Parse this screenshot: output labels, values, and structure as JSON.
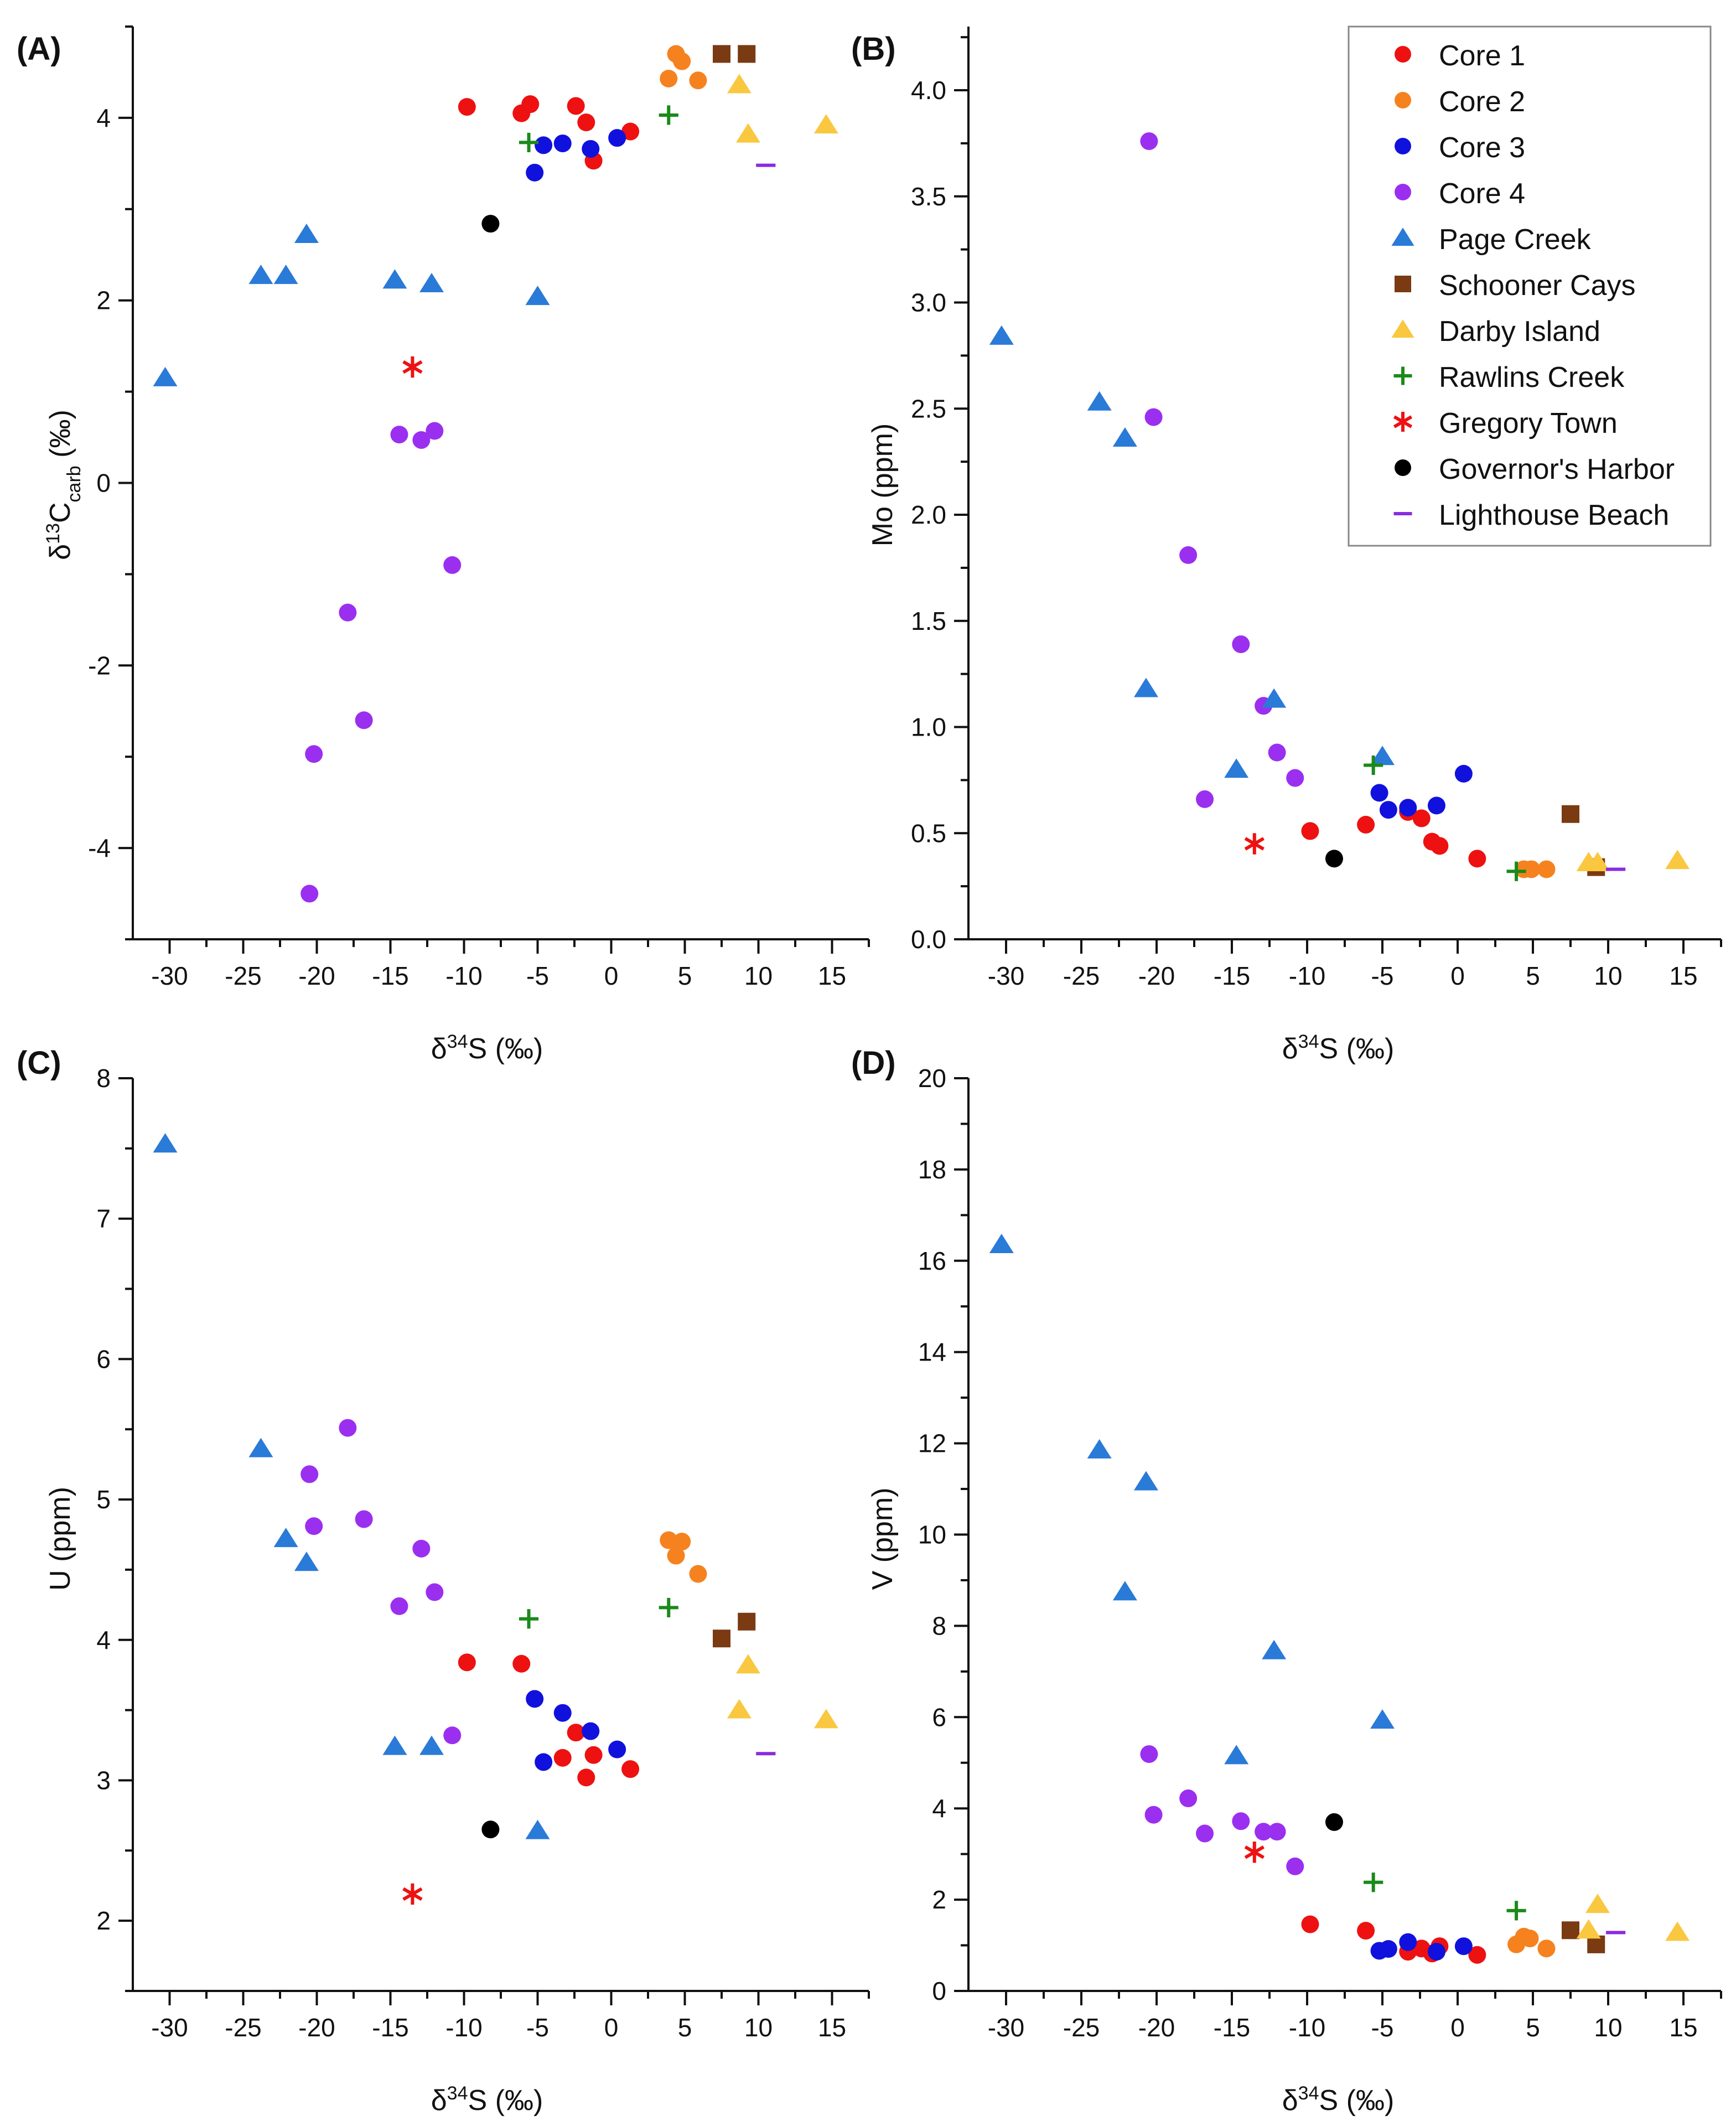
{
  "figure": {
    "legend": [
      {
        "name": "Core 1",
        "marker": "circle",
        "color": "#ee1111"
      },
      {
        "name": "Core 2",
        "marker": "circle",
        "color": "#f5821f"
      },
      {
        "name": "Core 3",
        "marker": "circle",
        "color": "#1111dd"
      },
      {
        "name": "Core 4",
        "marker": "circle",
        "color": "#9b2ff0"
      },
      {
        "name": "Page Creek",
        "marker": "triangle",
        "color": "#2a7ad8"
      },
      {
        "name": "Schooner Cays",
        "marker": "square",
        "color": "#7a3a12"
      },
      {
        "name": "Darby Island",
        "marker": "triangle",
        "color": "#f9c840"
      },
      {
        "name": "Rawlins Creek",
        "marker": "plus",
        "color": "#1a8a1a"
      },
      {
        "name": "Gregory Town",
        "marker": "asterisk",
        "color": "#ee1111"
      },
      {
        "name": "Governor's Harbor",
        "marker": "circle",
        "color": "#000000"
      },
      {
        "name": "Lighthouse Beach",
        "marker": "dash",
        "color": "#8a2be2"
      }
    ]
  },
  "chart_data": [
    {
      "type": "scatter",
      "panel": "(A)",
      "xlabel_main": "δ",
      "xlabel_sup": "34",
      "xlabel_rest": "S (‰)",
      "ylabel_main": "δ",
      "ylabel_sup": "13",
      "ylabel_mid": "C",
      "ylabel_sub": "carb",
      "ylabel_rest": " (‰)",
      "xlim": [
        -32.5,
        17.5
      ],
      "ylim": [
        -5,
        5
      ],
      "xticks": [
        -30,
        -25,
        -20,
        -15,
        -10,
        -5,
        0,
        5,
        10,
        15
      ],
      "yticks": [
        -4,
        -2,
        0,
        2,
        4
      ],
      "ytick_labels": [
        "-4",
        "-2",
        "0",
        "2",
        "4"
      ],
      "series": [
        {
          "name": "Core 1",
          "points": [
            [
              -9.8,
              4.12
            ],
            [
              -6.1,
              4.05
            ],
            [
              -5.5,
              4.15
            ],
            [
              -2.4,
              4.13
            ],
            [
              -1.7,
              3.95
            ],
            [
              -1.2,
              3.53
            ],
            [
              1.3,
              3.85
            ]
          ]
        },
        {
          "name": "Core 2",
          "points": [
            [
              3.9,
              4.43
            ],
            [
              4.4,
              4.7
            ],
            [
              4.8,
              4.62
            ],
            [
              5.9,
              4.41
            ]
          ]
        },
        {
          "name": "Core 3",
          "points": [
            [
              -5.2,
              3.4
            ],
            [
              -4.6,
              3.7
            ],
            [
              -3.3,
              3.72
            ],
            [
              -1.4,
              3.66
            ],
            [
              0.4,
              3.78
            ]
          ]
        },
        {
          "name": "Core 4",
          "points": [
            [
              -20.5,
              -4.5
            ],
            [
              -20.2,
              -2.97
            ],
            [
              -17.9,
              -1.42
            ],
            [
              -16.8,
              -2.6
            ],
            [
              -14.4,
              0.53
            ],
            [
              -12.9,
              0.47
            ],
            [
              -12.0,
              0.57
            ],
            [
              -10.8,
              -0.9
            ]
          ]
        },
        {
          "name": "Page Creek",
          "points": [
            [
              -30.3,
              1.15
            ],
            [
              -23.8,
              2.27
            ],
            [
              -22.1,
              2.27
            ],
            [
              -20.7,
              2.72
            ],
            [
              -14.7,
              2.22
            ],
            [
              -12.2,
              2.18
            ],
            [
              -5.0,
              2.04
            ]
          ]
        },
        {
          "name": "Schooner Cays",
          "points": [
            [
              7.5,
              4.7
            ],
            [
              9.2,
              4.7
            ]
          ]
        },
        {
          "name": "Darby Island",
          "points": [
            [
              8.7,
              4.36
            ],
            [
              9.3,
              3.82
            ],
            [
              14.6,
              3.92
            ]
          ]
        },
        {
          "name": "Rawlins Creek",
          "points": [
            [
              -5.6,
              3.73
            ],
            [
              3.9,
              4.03
            ]
          ]
        },
        {
          "name": "Gregory Town",
          "points": [
            [
              -13.5,
              1.27
            ]
          ]
        },
        {
          "name": "Governor's Harbor",
          "points": [
            [
              -8.2,
              2.84
            ]
          ]
        },
        {
          "name": "Lighthouse Beach",
          "points": [
            [
              10.5,
              3.48
            ]
          ]
        }
      ]
    },
    {
      "type": "scatter",
      "panel": "(B)",
      "xlabel_main": "δ",
      "xlabel_sup": "34",
      "xlabel_rest": "S (‰)",
      "ylabel_text": "Mo (ppm)",
      "xlim": [
        -32.5,
        17.5
      ],
      "ylim": [
        0,
        4.3
      ],
      "xticks": [
        -30,
        -25,
        -20,
        -15,
        -10,
        -5,
        0,
        5,
        10,
        15
      ],
      "yticks": [
        0,
        0.5,
        1,
        1.5,
        2,
        2.5,
        3,
        3.5,
        4
      ],
      "ytick_labels": [
        "0.0",
        "0.5",
        "1.0",
        "1.5",
        "2.0",
        "2.5",
        "3.0",
        "3.5",
        "4.0"
      ],
      "series": [
        {
          "name": "Core 1",
          "points": [
            [
              -9.8,
              0.51
            ],
            [
              -6.1,
              0.54
            ],
            [
              -3.3,
              0.6
            ],
            [
              -2.4,
              0.57
            ],
            [
              -1.7,
              0.46
            ],
            [
              -1.2,
              0.44
            ],
            [
              1.3,
              0.38
            ]
          ]
        },
        {
          "name": "Core 2",
          "points": [
            [
              4.4,
              0.33
            ],
            [
              4.9,
              0.33
            ],
            [
              5.9,
              0.33
            ]
          ]
        },
        {
          "name": "Core 3",
          "points": [
            [
              -5.2,
              0.69
            ],
            [
              -4.6,
              0.61
            ],
            [
              -3.3,
              0.62
            ],
            [
              -1.4,
              0.63
            ],
            [
              0.4,
              0.78
            ]
          ]
        },
        {
          "name": "Core 4",
          "points": [
            [
              -20.5,
              3.76
            ],
            [
              -20.2,
              2.46
            ],
            [
              -17.9,
              1.81
            ],
            [
              -16.8,
              0.66
            ],
            [
              -14.4,
              1.39
            ],
            [
              -12.9,
              1.1
            ],
            [
              -12.0,
              0.88
            ],
            [
              -10.8,
              0.76
            ]
          ]
        },
        {
          "name": "Page Creek",
          "points": [
            [
              -30.3,
              2.84
            ],
            [
              -23.8,
              2.53
            ],
            [
              -22.1,
              2.36
            ],
            [
              -20.7,
              1.18
            ],
            [
              -14.7,
              0.8
            ],
            [
              -12.2,
              1.13
            ],
            [
              -5.0,
              0.86
            ]
          ]
        },
        {
          "name": "Schooner Cays",
          "points": [
            [
              7.5,
              0.59
            ],
            [
              9.2,
              0.34
            ]
          ]
        },
        {
          "name": "Darby Island",
          "points": [
            [
              8.7,
              0.36
            ],
            [
              9.3,
              0.36
            ],
            [
              14.6,
              0.37
            ]
          ]
        },
        {
          "name": "Rawlins Creek",
          "points": [
            [
              -5.6,
              0.82
            ],
            [
              3.9,
              0.32
            ]
          ]
        },
        {
          "name": "Gregory Town",
          "points": [
            [
              -13.5,
              0.45
            ]
          ]
        },
        {
          "name": "Governor's Harbor",
          "points": [
            [
              -8.2,
              0.38
            ]
          ]
        },
        {
          "name": "Lighthouse Beach",
          "points": [
            [
              10.5,
              0.33
            ]
          ]
        }
      ]
    },
    {
      "type": "scatter",
      "panel": "(C)",
      "xlabel_main": "δ",
      "xlabel_sup": "34",
      "xlabel_rest": "S (‰)",
      "ylabel_text": "U (ppm)",
      "xlim": [
        -32.5,
        17.5
      ],
      "ylim": [
        1.5,
        8
      ],
      "xticks": [
        -30,
        -25,
        -20,
        -15,
        -10,
        -5,
        0,
        5,
        10,
        15
      ],
      "yticks": [
        2,
        3,
        4,
        5,
        6,
        7,
        8
      ],
      "ytick_labels": [
        "2",
        "3",
        "4",
        "5",
        "6",
        "7",
        "8"
      ],
      "series": [
        {
          "name": "Core 1",
          "points": [
            [
              -9.8,
              3.84
            ],
            [
              -6.1,
              3.83
            ],
            [
              -3.3,
              3.16
            ],
            [
              -2.4,
              3.34
            ],
            [
              -1.7,
              3.02
            ],
            [
              -1.2,
              3.18
            ],
            [
              1.3,
              3.08
            ]
          ]
        },
        {
          "name": "Core 2",
          "points": [
            [
              3.9,
              4.71
            ],
            [
              4.4,
              4.6
            ],
            [
              4.8,
              4.7
            ],
            [
              5.9,
              4.47
            ]
          ]
        },
        {
          "name": "Core 3",
          "points": [
            [
              -5.2,
              3.58
            ],
            [
              -4.6,
              3.13
            ],
            [
              -3.3,
              3.48
            ],
            [
              -1.4,
              3.35
            ],
            [
              0.4,
              3.22
            ]
          ]
        },
        {
          "name": "Core 4",
          "points": [
            [
              -20.5,
              5.18
            ],
            [
              -20.2,
              4.81
            ],
            [
              -17.9,
              5.51
            ],
            [
              -16.8,
              4.86
            ],
            [
              -14.4,
              4.24
            ],
            [
              -12.9,
              4.65
            ],
            [
              -12.0,
              4.34
            ],
            [
              -10.8,
              3.32
            ]
          ]
        },
        {
          "name": "Page Creek",
          "points": [
            [
              -30.3,
              7.53
            ],
            [
              -23.8,
              5.36
            ],
            [
              -22.1,
              4.72
            ],
            [
              -20.7,
              4.55
            ],
            [
              -14.7,
              3.24
            ],
            [
              -12.2,
              3.24
            ],
            [
              -5.0,
              2.64
            ]
          ]
        },
        {
          "name": "Schooner Cays",
          "points": [
            [
              7.5,
              4.01
            ],
            [
              9.2,
              4.13
            ]
          ]
        },
        {
          "name": "Darby Island",
          "points": [
            [
              8.7,
              3.5
            ],
            [
              9.3,
              3.82
            ],
            [
              14.6,
              3.43
            ]
          ]
        },
        {
          "name": "Rawlins Creek",
          "points": [
            [
              -5.6,
              4.15
            ],
            [
              3.9,
              4.23
            ]
          ]
        },
        {
          "name": "Gregory Town",
          "points": [
            [
              -13.5,
              2.19
            ]
          ]
        },
        {
          "name": "Governor's Harbor",
          "points": [
            [
              -8.2,
              2.65
            ]
          ]
        },
        {
          "name": "Lighthouse Beach",
          "points": [
            [
              10.5,
              3.19
            ]
          ]
        }
      ]
    },
    {
      "type": "scatter",
      "panel": "(D)",
      "xlabel_main": "δ",
      "xlabel_sup": "34",
      "xlabel_rest": "S (‰)",
      "ylabel_text": "V (ppm)",
      "xlim": [
        -32.5,
        17.5
      ],
      "ylim": [
        0,
        20
      ],
      "xticks": [
        -30,
        -25,
        -20,
        -15,
        -10,
        -5,
        0,
        5,
        10,
        15
      ],
      "yticks": [
        0,
        2,
        4,
        6,
        8,
        10,
        12,
        14,
        16,
        18,
        20
      ],
      "ytick_labels": [
        "0",
        "2",
        "4",
        "6",
        "8",
        "10",
        "12",
        "14",
        "16",
        "18",
        "20"
      ],
      "series": [
        {
          "name": "Core 1",
          "points": [
            [
              -9.8,
              1.46
            ],
            [
              -6.1,
              1.32
            ],
            [
              -3.3,
              0.86
            ],
            [
              -2.4,
              0.93
            ],
            [
              -1.7,
              0.82
            ],
            [
              -1.2,
              0.98
            ],
            [
              1.3,
              0.79
            ]
          ]
        },
        {
          "name": "Core 2",
          "points": [
            [
              3.9,
              1.02
            ],
            [
              4.4,
              1.19
            ],
            [
              4.8,
              1.15
            ],
            [
              5.9,
              0.93
            ]
          ]
        },
        {
          "name": "Core 3",
          "points": [
            [
              -5.2,
              0.88
            ],
            [
              -4.6,
              0.92
            ],
            [
              -3.3,
              1.07
            ],
            [
              -1.4,
              0.86
            ],
            [
              0.4,
              0.98
            ]
          ]
        },
        {
          "name": "Core 4",
          "points": [
            [
              -20.5,
              5.19
            ],
            [
              -20.2,
              3.86
            ],
            [
              -17.9,
              4.22
            ],
            [
              -16.8,
              3.45
            ],
            [
              -14.4,
              3.72
            ],
            [
              -12.9,
              3.49
            ],
            [
              -12.0,
              3.49
            ],
            [
              -10.8,
              2.73
            ]
          ]
        },
        {
          "name": "Page Creek",
          "points": [
            [
              -30.3,
              16.35
            ],
            [
              -23.8,
              11.85
            ],
            [
              -22.1,
              8.74
            ],
            [
              -20.7,
              11.15
            ],
            [
              -14.7,
              5.15
            ],
            [
              -12.2,
              7.45
            ],
            [
              -5.0,
              5.93
            ]
          ]
        },
        {
          "name": "Schooner Cays",
          "points": [
            [
              7.5,
              1.33
            ],
            [
              9.2,
              1.02
            ]
          ]
        },
        {
          "name": "Darby Island",
          "points": [
            [
              8.7,
              1.33
            ],
            [
              9.3,
              1.89
            ],
            [
              14.6,
              1.28
            ]
          ]
        },
        {
          "name": "Rawlins Creek",
          "points": [
            [
              -5.6,
              2.38
            ],
            [
              3.9,
              1.76
            ]
          ]
        },
        {
          "name": "Gregory Town",
          "points": [
            [
              -13.5,
              3.04
            ]
          ]
        },
        {
          "name": "Governor's Harbor",
          "points": [
            [
              -8.2,
              3.7
            ]
          ]
        },
        {
          "name": "Lighthouse Beach",
          "points": [
            [
              10.5,
              1.28
            ]
          ]
        }
      ]
    }
  ]
}
